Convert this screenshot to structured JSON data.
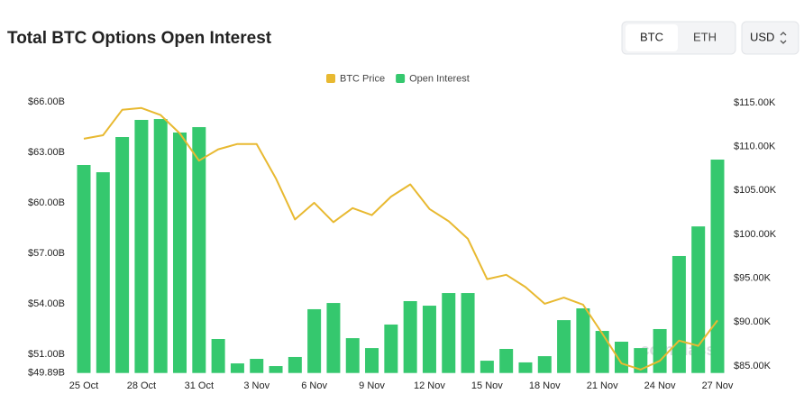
{
  "controls": {
    "coins": [
      "BTC",
      "ETH"
    ],
    "currency": "USD"
  },
  "chart_data": {
    "type": "bar-line",
    "title": "Total BTC Options Open Interest",
    "watermark": "coinglass",
    "categories": [
      "25 Oct",
      null,
      null,
      "28 Oct",
      null,
      null,
      "31 Oct",
      null,
      null,
      "3 Nov",
      null,
      null,
      "6 Nov",
      null,
      null,
      "9 Nov",
      null,
      null,
      "12 Nov",
      null,
      null,
      "15 Nov",
      null,
      null,
      "18 Nov",
      null,
      null,
      "21 Nov",
      null,
      null,
      "24 Nov",
      null,
      null,
      "27 Nov"
    ],
    "series": [
      {
        "name": "BTC Price",
        "type": "line",
        "axis": "y2",
        "color": "#e8b931",
        "values": [
          110900,
          111300,
          114200,
          114400,
          113600,
          111500,
          108400,
          109700,
          110300,
          110300,
          106400,
          101700,
          103600,
          101400,
          103000,
          102200,
          104300,
          105700,
          102900,
          101500,
          99500,
          94900,
          95400,
          94000,
          92100,
          92800,
          92000,
          88700,
          85300,
          84600,
          85600,
          87900,
          87300,
          90200
        ]
      },
      {
        "name": "Open Interest",
        "type": "bar",
        "color": "#35c86e",
        "values": [
          62.25,
          61.82,
          63.91,
          64.93,
          64.98,
          64.18,
          64.5,
          51.91,
          50.46,
          50.73,
          50.3,
          50.84,
          53.68,
          54.05,
          51.96,
          51.37,
          52.77,
          54.16,
          53.89,
          54.64,
          54.64,
          50.62,
          51.32,
          50.52,
          50.89,
          53.03,
          53.73,
          52.39,
          51.75,
          51.37,
          52.5,
          56.84,
          58.6,
          62.57
        ]
      }
    ],
    "ylim": [
      49.89,
      66.0
    ],
    "yticks": [
      {
        "value": 49.89,
        "label": "$49.89B"
      },
      {
        "value": 51,
        "label": "$51.00B"
      },
      {
        "value": 54,
        "label": "$54.00B"
      },
      {
        "value": 57,
        "label": "$57.00B"
      },
      {
        "value": 60,
        "label": "$60.00B"
      },
      {
        "value": 63,
        "label": "$63.00B"
      },
      {
        "value": 66,
        "label": "$66.00B"
      }
    ],
    "y2lim": [
      84210,
      115100
    ],
    "y2ticks": [
      {
        "value": 85000,
        "label": "$85.00K"
      },
      {
        "value": 90000,
        "label": "$90.00K"
      },
      {
        "value": 95000,
        "label": "$95.00K"
      },
      {
        "value": 100000,
        "label": "$100.00K"
      },
      {
        "value": 105000,
        "label": "$105.00K"
      },
      {
        "value": 110000,
        "label": "$110.00K"
      },
      {
        "value": 115000,
        "label": "$115.00K"
      }
    ]
  }
}
